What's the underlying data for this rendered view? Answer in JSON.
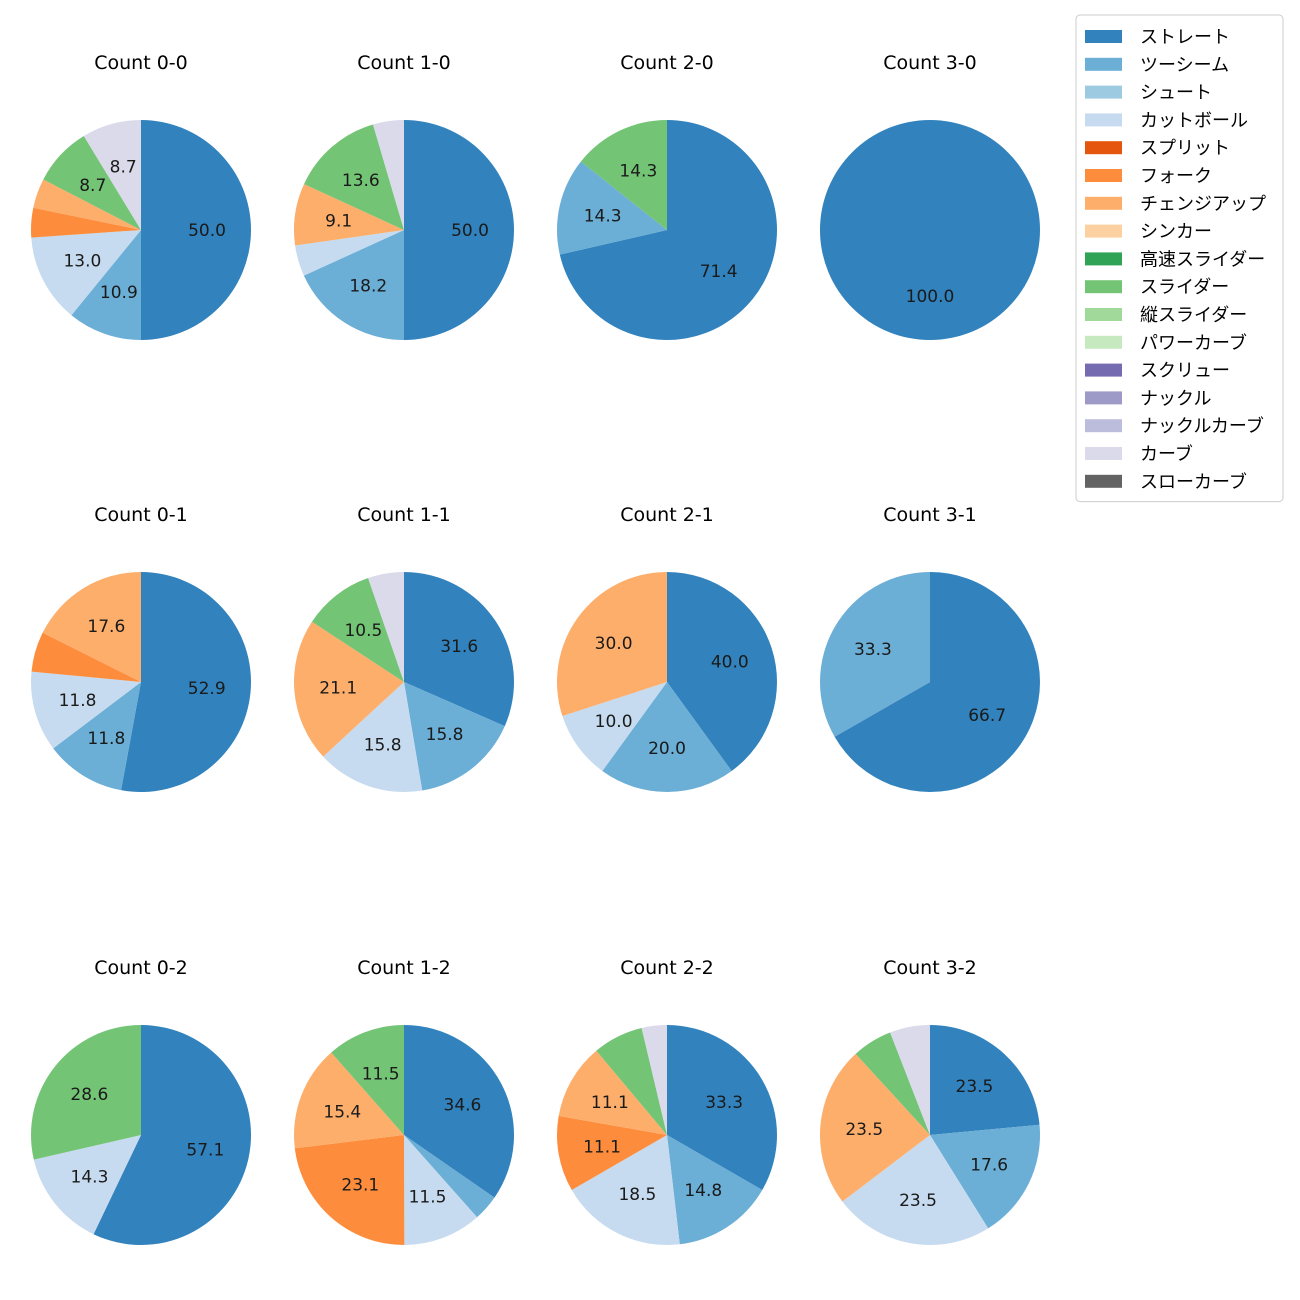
{
  "chart_data": {
    "type": "pie",
    "legend": {
      "placement": "top-right",
      "entries": [
        {
          "name": "ストレート",
          "color": "#3182bd"
        },
        {
          "name": "ツーシーム",
          "color": "#6baed6"
        },
        {
          "name": "シュート",
          "color": "#9ecae1"
        },
        {
          "name": "カットボール",
          "color": "#c6dbef"
        },
        {
          "name": "スプリット",
          "color": "#e6550d"
        },
        {
          "name": "フォーク",
          "color": "#fd8d3c"
        },
        {
          "name": "チェンジアップ",
          "color": "#fdae6b"
        },
        {
          "name": "シンカー",
          "color": "#fdd0a2"
        },
        {
          "name": "高速スライダー",
          "color": "#31a354"
        },
        {
          "name": "スライダー",
          "color": "#74c476"
        },
        {
          "name": "縦スライダー",
          "color": "#a1d99b"
        },
        {
          "name": "パワーカーブ",
          "color": "#c7e9c0"
        },
        {
          "name": "スクリュー",
          "color": "#756bb1"
        },
        {
          "name": "ナックル",
          "color": "#9e9ac8"
        },
        {
          "name": "ナックルカーブ",
          "color": "#bcbddc"
        },
        {
          "name": "カーブ",
          "color": "#dadaeb"
        },
        {
          "name": "スローカーブ",
          "color": "#636363"
        }
      ]
    },
    "pies": [
      {
        "title": "Count 0-0",
        "slices": [
          {
            "pitch": "ストレート",
            "value": 50.0,
            "label": "50.0"
          },
          {
            "pitch": "ツーシーム",
            "value": 10.9,
            "label": "10.9"
          },
          {
            "pitch": "カットボール",
            "value": 13.0,
            "label": "13.0"
          },
          {
            "pitch": "フォーク",
            "value": 4.35,
            "label": ""
          },
          {
            "pitch": "チェンジアップ",
            "value": 4.35,
            "label": ""
          },
          {
            "pitch": "スライダー",
            "value": 8.7,
            "label": "8.7"
          },
          {
            "pitch": "カーブ",
            "value": 8.7,
            "label": "8.7"
          }
        ]
      },
      {
        "title": "Count 1-0",
        "slices": [
          {
            "pitch": "ストレート",
            "value": 50.0,
            "label": "50.0"
          },
          {
            "pitch": "ツーシーム",
            "value": 18.2,
            "label": "18.2"
          },
          {
            "pitch": "カットボール",
            "value": 4.55,
            "label": ""
          },
          {
            "pitch": "チェンジアップ",
            "value": 9.1,
            "label": "9.1"
          },
          {
            "pitch": "スライダー",
            "value": 13.6,
            "label": "13.6"
          },
          {
            "pitch": "カーブ",
            "value": 4.55,
            "label": ""
          }
        ]
      },
      {
        "title": "Count 2-0",
        "slices": [
          {
            "pitch": "ストレート",
            "value": 71.4,
            "label": "71.4"
          },
          {
            "pitch": "ツーシーム",
            "value": 14.3,
            "label": "14.3"
          },
          {
            "pitch": "スライダー",
            "value": 14.3,
            "label": "14.3"
          }
        ]
      },
      {
        "title": "Count 3-0",
        "slices": [
          {
            "pitch": "ストレート",
            "value": 100.0,
            "label": "100.0"
          }
        ]
      },
      {
        "title": "Count 0-1",
        "slices": [
          {
            "pitch": "ストレート",
            "value": 52.9,
            "label": "52.9"
          },
          {
            "pitch": "ツーシーム",
            "value": 11.8,
            "label": "11.8"
          },
          {
            "pitch": "カットボール",
            "value": 11.8,
            "label": "11.8"
          },
          {
            "pitch": "フォーク",
            "value": 5.9,
            "label": ""
          },
          {
            "pitch": "チェンジアップ",
            "value": 17.6,
            "label": "17.6"
          }
        ]
      },
      {
        "title": "Count 1-1",
        "slices": [
          {
            "pitch": "ストレート",
            "value": 31.6,
            "label": "31.6"
          },
          {
            "pitch": "ツーシーム",
            "value": 15.8,
            "label": "15.8"
          },
          {
            "pitch": "カットボール",
            "value": 15.8,
            "label": "15.8"
          },
          {
            "pitch": "チェンジアップ",
            "value": 21.1,
            "label": "21.1"
          },
          {
            "pitch": "スライダー",
            "value": 10.5,
            "label": "10.5"
          },
          {
            "pitch": "カーブ",
            "value": 5.3,
            "label": ""
          }
        ]
      },
      {
        "title": "Count 2-1",
        "slices": [
          {
            "pitch": "ストレート",
            "value": 40.0,
            "label": "40.0"
          },
          {
            "pitch": "ツーシーム",
            "value": 20.0,
            "label": "20.0"
          },
          {
            "pitch": "カットボール",
            "value": 10.0,
            "label": "10.0"
          },
          {
            "pitch": "チェンジアップ",
            "value": 30.0,
            "label": "30.0"
          }
        ]
      },
      {
        "title": "Count 3-1",
        "slices": [
          {
            "pitch": "ストレート",
            "value": 66.7,
            "label": "66.7"
          },
          {
            "pitch": "ツーシーム",
            "value": 33.3,
            "label": "33.3"
          }
        ]
      },
      {
        "title": "Count 0-2",
        "slices": [
          {
            "pitch": "ストレート",
            "value": 57.1,
            "label": "57.1"
          },
          {
            "pitch": "カットボール",
            "value": 14.3,
            "label": "14.3"
          },
          {
            "pitch": "スライダー",
            "value": 28.6,
            "label": "28.6"
          }
        ]
      },
      {
        "title": "Count 1-2",
        "slices": [
          {
            "pitch": "ストレート",
            "value": 34.6,
            "label": "34.6"
          },
          {
            "pitch": "ツーシーム",
            "value": 3.8,
            "label": ""
          },
          {
            "pitch": "カットボール",
            "value": 11.5,
            "label": "11.5"
          },
          {
            "pitch": "フォーク",
            "value": 23.1,
            "label": "23.1"
          },
          {
            "pitch": "チェンジアップ",
            "value": 15.4,
            "label": "15.4"
          },
          {
            "pitch": "スライダー",
            "value": 11.5,
            "label": "11.5"
          }
        ]
      },
      {
        "title": "Count 2-2",
        "slices": [
          {
            "pitch": "ストレート",
            "value": 33.3,
            "label": "33.3"
          },
          {
            "pitch": "ツーシーム",
            "value": 14.8,
            "label": "14.8"
          },
          {
            "pitch": "カットボール",
            "value": 18.5,
            "label": "18.5"
          },
          {
            "pitch": "フォーク",
            "value": 11.1,
            "label": "11.1"
          },
          {
            "pitch": "チェンジアップ",
            "value": 11.1,
            "label": "11.1"
          },
          {
            "pitch": "スライダー",
            "value": 7.4,
            "label": ""
          },
          {
            "pitch": "カーブ",
            "value": 3.7,
            "label": ""
          }
        ]
      },
      {
        "title": "Count 3-2",
        "slices": [
          {
            "pitch": "ストレート",
            "value": 23.5,
            "label": "23.5"
          },
          {
            "pitch": "ツーシーム",
            "value": 17.6,
            "label": "17.6"
          },
          {
            "pitch": "カットボール",
            "value": 23.5,
            "label": "23.5"
          },
          {
            "pitch": "チェンジアップ",
            "value": 23.5,
            "label": "23.5"
          },
          {
            "pitch": "スライダー",
            "value": 5.9,
            "label": ""
          },
          {
            "pitch": "カーブ",
            "value": 5.9,
            "label": ""
          }
        ]
      }
    ]
  }
}
